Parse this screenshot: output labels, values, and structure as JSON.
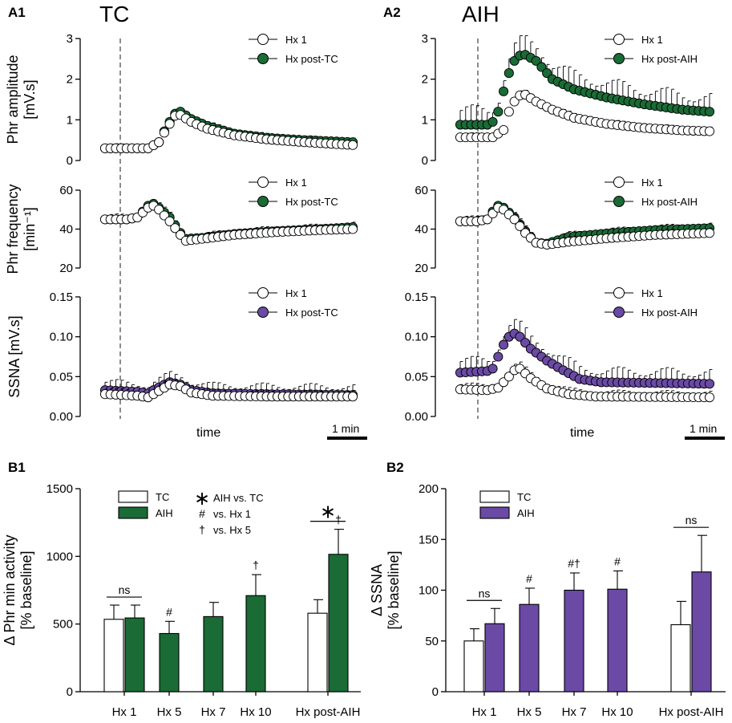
{
  "colors": {
    "green": "#1a6b36",
    "purple": "#6a4aa5",
    "white": "#ffffff",
    "black": "#000000",
    "dash": "#666666"
  },
  "labels": {
    "A1": "A1",
    "A2": "A2",
    "B1": "B1",
    "B2": "B2",
    "tc_title": "TC",
    "aih_title": "AIH",
    "time_a1": "time",
    "time_a2": "time",
    "scale_a1": "1 min",
    "scale_a2": "1 min"
  },
  "chart_data": [
    {
      "id": "A1-amp",
      "type": "line",
      "panel": "A1",
      "ylabel": [
        "Phr amplitude",
        "[mV.s]"
      ],
      "ylim": [
        0,
        3
      ],
      "yticks": [
        "0",
        "1",
        "2",
        "3"
      ],
      "legend": [
        "Hx 1",
        "Hx post-TC"
      ],
      "series": [
        {
          "name": "Hx 1",
          "color": "white",
          "points": [
            [
              0,
              0.3
            ],
            [
              8,
              0.3
            ],
            [
              10,
              0.45
            ],
            [
              11.5,
              0.8
            ],
            [
              13,
              1.1
            ],
            [
              14,
              1.12
            ],
            [
              16,
              0.95
            ],
            [
              19,
              0.78
            ],
            [
              24,
              0.62
            ],
            [
              30,
              0.52
            ],
            [
              37,
              0.45
            ],
            [
              46,
              0.38
            ]
          ],
          "err": 0.06
        },
        {
          "name": "Hx post-TC",
          "color": "green",
          "points": [
            [
              0,
              0.3
            ],
            [
              8,
              0.3
            ],
            [
              10,
              0.45
            ],
            [
              11.5,
              0.85
            ],
            [
              13,
              1.15
            ],
            [
              14,
              1.2
            ],
            [
              16,
              1.02
            ],
            [
              19,
              0.85
            ],
            [
              24,
              0.66
            ],
            [
              30,
              0.56
            ],
            [
              37,
              0.5
            ],
            [
              46,
              0.45
            ]
          ],
          "err": 0.08
        }
      ]
    },
    {
      "id": "A1-freq",
      "type": "line",
      "panel": "A1",
      "ylabel": [
        "Phr frequency",
        "[min⁻¹]"
      ],
      "ylim": [
        20,
        60
      ],
      "yticks": [
        "20",
        "40",
        "60"
      ],
      "legend": [
        "Hx 1",
        "Hx post-TC"
      ],
      "series": [
        {
          "name": "Hx 1",
          "color": "white",
          "points": [
            [
              0,
              45
            ],
            [
              4,
              45
            ],
            [
              6,
              46
            ],
            [
              8,
              51
            ],
            [
              9,
              52
            ],
            [
              10,
              50
            ],
            [
              12,
              44
            ],
            [
              14,
              37
            ],
            [
              15,
              34
            ],
            [
              18,
              35
            ],
            [
              24,
              37
            ],
            [
              32,
              38.5
            ],
            [
              40,
              39.5
            ],
            [
              46,
              40
            ]
          ],
          "err": 1.5
        },
        {
          "name": "Hx post-TC",
          "color": "green",
          "points": [
            [
              0,
              45
            ],
            [
              4,
              45
            ],
            [
              6,
              46
            ],
            [
              8,
              52
            ],
            [
              9,
              53
            ],
            [
              10,
              51
            ],
            [
              12,
              46
            ],
            [
              14,
              38
            ],
            [
              15,
              35
            ],
            [
              18,
              35.5
            ],
            [
              24,
              37.5
            ],
            [
              32,
              39
            ],
            [
              40,
              40
            ],
            [
              46,
              41
            ]
          ],
          "err": 2
        }
      ]
    },
    {
      "id": "A1-ssna",
      "type": "line",
      "panel": "A1",
      "ylabel": [
        "SSNA [mV.s]"
      ],
      "ylim": [
        0,
        0.15
      ],
      "yticks": [
        "0.00",
        "0.05",
        "0.10",
        "0.15"
      ],
      "legend": [
        "Hx 1",
        "Hx post-TC"
      ],
      "series": [
        {
          "name": "Hx 1",
          "color": "white",
          "points": [
            [
              0,
              0.028
            ],
            [
              6,
              0.026
            ],
            [
              8,
              0.024
            ],
            [
              9,
              0.028
            ],
            [
              11,
              0.036
            ],
            [
              12,
              0.04
            ],
            [
              14,
              0.038
            ],
            [
              16,
              0.03
            ],
            [
              20,
              0.026
            ],
            [
              30,
              0.025
            ],
            [
              46,
              0.025
            ]
          ],
          "err": 0.006
        },
        {
          "name": "Hx post-TC",
          "color": "purple",
          "points": [
            [
              0,
              0.033
            ],
            [
              6,
              0.031
            ],
            [
              8,
              0.029
            ],
            [
              9,
              0.033
            ],
            [
              11,
              0.04
            ],
            [
              12,
              0.043
            ],
            [
              14,
              0.04
            ],
            [
              16,
              0.033
            ],
            [
              20,
              0.029
            ],
            [
              30,
              0.028
            ],
            [
              46,
              0.027
            ]
          ],
          "err": 0.01
        }
      ]
    },
    {
      "id": "A2-amp",
      "type": "line",
      "panel": "A2",
      "ylabel": [],
      "ylim": [
        0,
        3
      ],
      "yticks": [
        "0",
        "1",
        "2",
        "3"
      ],
      "legend": [
        "Hx 1",
        "Hx post-AIH"
      ],
      "series": [
        {
          "name": "Hx 1",
          "color": "white",
          "points": [
            [
              0,
              0.57
            ],
            [
              6,
              0.57
            ],
            [
              8,
              0.75
            ],
            [
              9,
              1.2
            ],
            [
              10,
              1.45
            ],
            [
              11,
              1.6
            ],
            [
              12,
              1.62
            ],
            [
              14,
              1.45
            ],
            [
              17,
              1.25
            ],
            [
              21,
              1.05
            ],
            [
              27,
              0.9
            ],
            [
              34,
              0.8
            ],
            [
              41,
              0.74
            ],
            [
              46,
              0.72
            ]
          ],
          "err": 0.08
        },
        {
          "name": "Hx post-AIH",
          "color": "green",
          "points": [
            [
              0,
              0.88
            ],
            [
              5,
              0.88
            ],
            [
              6,
              0.95
            ],
            [
              7,
              1.2
            ],
            [
              8,
              1.7
            ],
            [
              9,
              2.15
            ],
            [
              10,
              2.45
            ],
            [
              11,
              2.58
            ],
            [
              12,
              2.6
            ],
            [
              14,
              2.45
            ],
            [
              17,
              2.0
            ],
            [
              21,
              1.75
            ],
            [
              27,
              1.55
            ],
            [
              34,
              1.38
            ],
            [
              41,
              1.25
            ],
            [
              46,
              1.2
            ]
          ],
          "err": 0.35
        }
      ]
    },
    {
      "id": "A2-freq",
      "type": "line",
      "panel": "A2",
      "ylabel": [],
      "ylim": [
        20,
        60
      ],
      "yticks": [
        "20",
        "40",
        "60"
      ],
      "legend": [
        "Hx 1",
        "Hx post-AIH"
      ],
      "series": [
        {
          "name": "Hx 1",
          "color": "white",
          "points": [
            [
              0,
              44
            ],
            [
              3,
              44
            ],
            [
              5,
              45
            ],
            [
              6,
              48
            ],
            [
              7,
              51
            ],
            [
              8,
              50
            ],
            [
              10,
              45
            ],
            [
              12,
              38
            ],
            [
              14,
              33
            ],
            [
              16,
              32
            ],
            [
              20,
              33.5
            ],
            [
              28,
              35.5
            ],
            [
              36,
              37
            ],
            [
              46,
              38
            ]
          ],
          "err": 2
        },
        {
          "name": "Hx post-AIH",
          "color": "green",
          "points": [
            [
              0,
              44
            ],
            [
              3,
              44
            ],
            [
              5,
              45
            ],
            [
              6,
              49
            ],
            [
              7,
              52
            ],
            [
              8,
              51
            ],
            [
              10,
              46
            ],
            [
              12,
              39
            ],
            [
              14,
              33
            ],
            [
              16,
              32.5
            ],
            [
              20,
              36
            ],
            [
              28,
              38
            ],
            [
              36,
              39.5
            ],
            [
              46,
              40.5
            ]
          ],
          "err": 2
        }
      ]
    },
    {
      "id": "A2-ssna",
      "type": "line",
      "panel": "A2",
      "ylabel": [],
      "ylim": [
        0,
        0.15
      ],
      "yticks": [
        "0.00",
        "0.05",
        "0.10",
        "0.15"
      ],
      "legend": [
        "Hx 1",
        "Hx post-AIH"
      ],
      "series": [
        {
          "name": "Hx 1",
          "color": "white",
          "points": [
            [
              0,
              0.034
            ],
            [
              5,
              0.033
            ],
            [
              7,
              0.036
            ],
            [
              9,
              0.05
            ],
            [
              10,
              0.058
            ],
            [
              11,
              0.06
            ],
            [
              13,
              0.048
            ],
            [
              16,
              0.035
            ],
            [
              20,
              0.028
            ],
            [
              25,
              0.025
            ],
            [
              46,
              0.024
            ]
          ],
          "err": 0.006
        },
        {
          "name": "Hx post-AIH",
          "color": "purple",
          "points": [
            [
              0,
              0.055
            ],
            [
              5,
              0.057
            ],
            [
              6,
              0.06
            ],
            [
              7,
              0.075
            ],
            [
              8,
              0.09
            ],
            [
              9,
              0.1
            ],
            [
              10,
              0.104
            ],
            [
              11,
              0.1
            ],
            [
              13,
              0.085
            ],
            [
              16,
              0.07
            ],
            [
              19,
              0.058
            ],
            [
              22,
              0.047
            ],
            [
              26,
              0.043
            ],
            [
              46,
              0.041
            ]
          ],
          "err": 0.014
        }
      ]
    },
    {
      "id": "B1",
      "type": "bar",
      "panel": "B1",
      "ylabel": [
        "Δ Phr min activity",
        "[% baseline]"
      ],
      "ylim": [
        0,
        1500
      ],
      "yticks": [
        "0",
        "500",
        "1000",
        "1500"
      ],
      "categories": [
        "Hx 1",
        "Hx 5",
        "Hx 7",
        "Hx 10",
        "Hx post-AIH"
      ],
      "legend": [
        "TC",
        "AIH"
      ],
      "stats_legend": [
        [
          "∗",
          "AIH vs. TC"
        ],
        [
          "#",
          "vs. Hx 1"
        ],
        [
          "†",
          "vs. Hx 5"
        ]
      ],
      "series": [
        {
          "name": "TC",
          "color": "white",
          "values": [
            535,
            null,
            null,
            null,
            580
          ],
          "errors": [
            105,
            null,
            null,
            null,
            100
          ]
        },
        {
          "name": "AIH",
          "color": "green",
          "values": [
            545,
            430,
            555,
            710,
            1015
          ],
          "errors": [
            95,
            90,
            105,
            155,
            185
          ]
        }
      ],
      "annotations": [
        {
          "cat": 0,
          "text": "ns",
          "type": "bracket"
        },
        {
          "cat": 1,
          "text": "#",
          "type": "mark"
        },
        {
          "cat": 3,
          "text": "†",
          "type": "mark"
        },
        {
          "cat": 4,
          "text": "†",
          "type": "mark"
        },
        {
          "cat": 4,
          "text": "∗",
          "type": "bracket"
        }
      ]
    },
    {
      "id": "B2",
      "type": "bar",
      "panel": "B2",
      "ylabel": [
        "Δ SSNA",
        "[% baseline]"
      ],
      "ylim": [
        0,
        200
      ],
      "yticks": [
        "0",
        "50",
        "100",
        "150",
        "200"
      ],
      "categories": [
        "Hx 1",
        "Hx 5",
        "Hx 7",
        "Hx 10",
        "Hx post-AIH"
      ],
      "legend": [
        "TC",
        "AIH"
      ],
      "series": [
        {
          "name": "TC",
          "color": "white",
          "values": [
            50,
            null,
            null,
            null,
            66
          ],
          "errors": [
            12,
            null,
            null,
            null,
            23
          ]
        },
        {
          "name": "AIH",
          "color": "purple",
          "values": [
            67,
            86,
            100,
            101,
            118
          ],
          "errors": [
            15,
            16,
            17,
            18,
            36
          ]
        }
      ],
      "annotations": [
        {
          "cat": 0,
          "text": "ns",
          "type": "bracket"
        },
        {
          "cat": 1,
          "text": "#",
          "type": "mark"
        },
        {
          "cat": 2,
          "text": "#†",
          "type": "mark"
        },
        {
          "cat": 3,
          "text": "#",
          "type": "mark"
        },
        {
          "cat": 4,
          "text": "ns",
          "type": "bracket"
        }
      ]
    }
  ]
}
